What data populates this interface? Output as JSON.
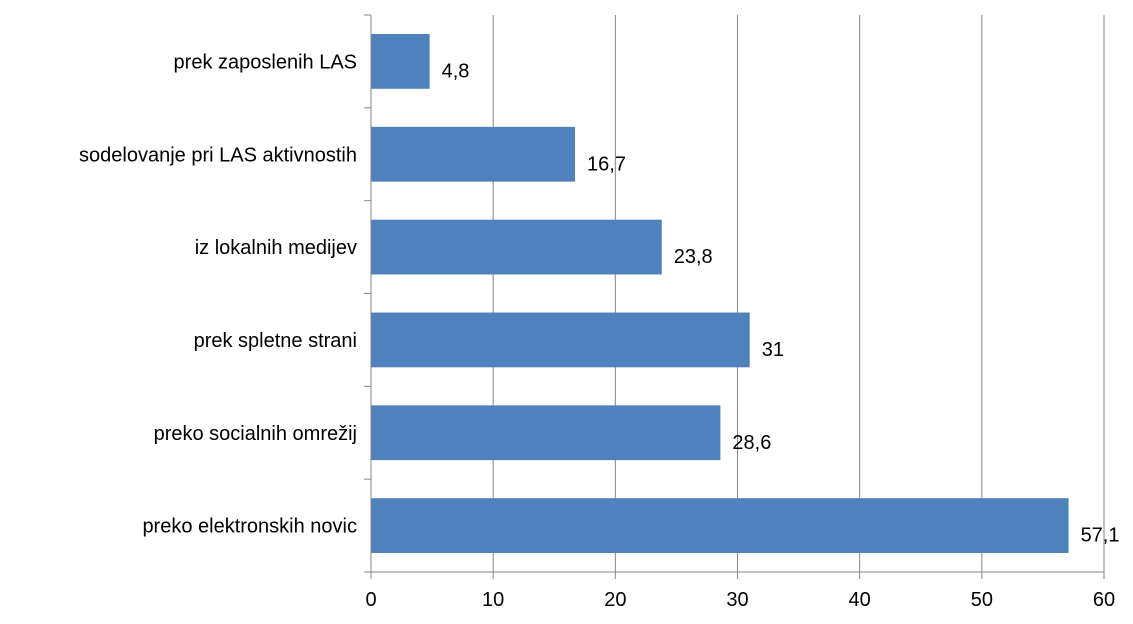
{
  "chart_data": {
    "type": "bar",
    "orientation": "horizontal",
    "categories": [
      "prek zaposlenih LAS",
      "sodelovanje pri LAS aktivnostih",
      "iz lokalnih medijev",
      "prek spletne strani",
      "preko socialnih omrežij",
      "preko elektronskih novic"
    ],
    "values": [
      4.8,
      16.7,
      23.8,
      31,
      28.6,
      57.1
    ],
    "data_labels": [
      "4,8",
      "16,7",
      "23,8",
      "31",
      "28,6",
      "57,1"
    ],
    "xlim": [
      0,
      60
    ],
    "x_ticks": [
      0,
      10,
      20,
      30,
      40,
      50,
      60
    ],
    "x_tick_labels": [
      "0",
      "10",
      "20",
      "30",
      "40",
      "50",
      "60"
    ],
    "grid": true,
    "legend": "none",
    "bar_color": "#4F81BD",
    "grid_color": "#868686",
    "axis_color": "#868686"
  }
}
